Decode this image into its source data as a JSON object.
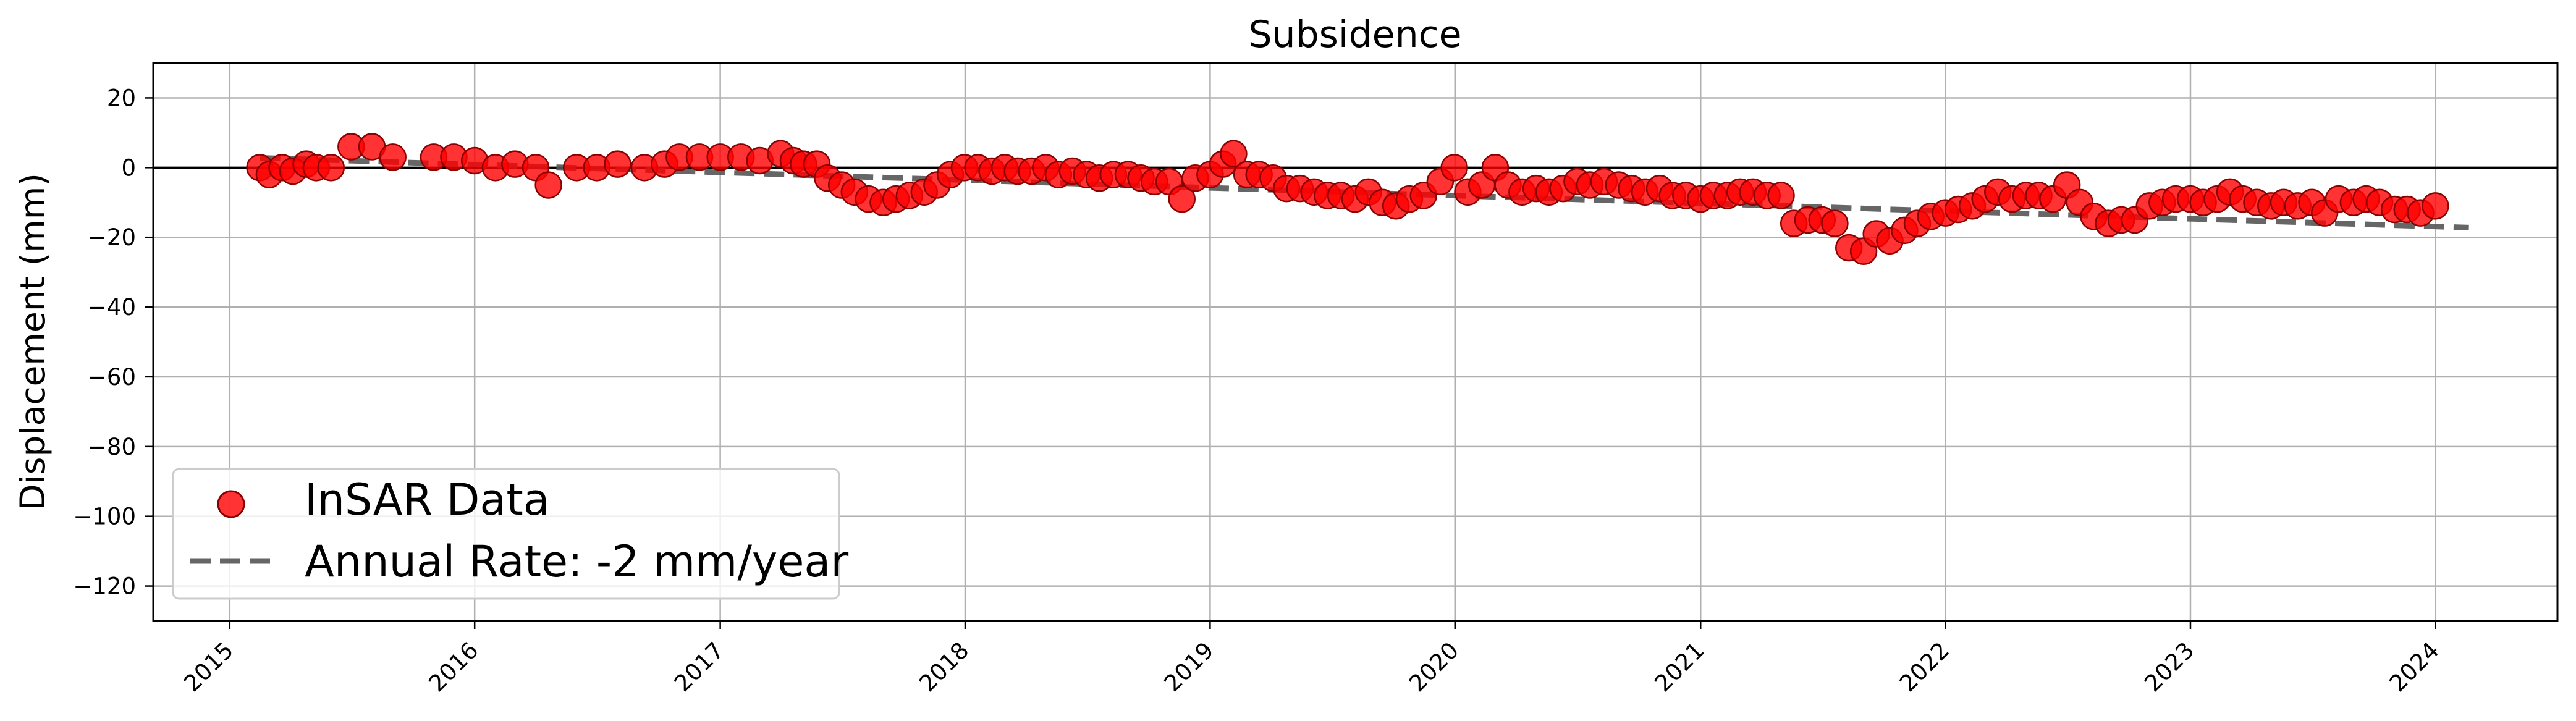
{
  "chart_data": {
    "type": "scatter",
    "title": "Subsidence",
    "xlabel": "",
    "ylabel": "Displacement (mm)",
    "xlim": [
      "2014-09-09",
      "2024-07-01"
    ],
    "ylim": [
      -130,
      30
    ],
    "x_ticks": [
      "2015",
      "2016",
      "2017",
      "2018",
      "2019",
      "2020",
      "2021",
      "2022",
      "2023",
      "2024"
    ],
    "y_ticks": [
      20,
      0,
      -20,
      -40,
      -60,
      -80,
      -100,
      -120
    ],
    "y_tick_labels": [
      "20",
      "0",
      "−20",
      "−40",
      "−60",
      "−80",
      "−100",
      "−120"
    ],
    "grid": true,
    "zero_line": true,
    "legend_position": "lower-left",
    "series": [
      {
        "name": "InSAR Data",
        "kind": "scatter",
        "color": "#ff0000",
        "points": [
          [
            "2015-02-15",
            0
          ],
          [
            "2015-03-01",
            -2
          ],
          [
            "2015-03-20",
            0
          ],
          [
            "2015-04-05",
            -1
          ],
          [
            "2015-04-25",
            1
          ],
          [
            "2015-05-10",
            0
          ],
          [
            "2015-06-01",
            0
          ],
          [
            "2015-07-01",
            6
          ],
          [
            "2015-08-01",
            6
          ],
          [
            "2015-09-01",
            3
          ],
          [
            "2015-11-01",
            3
          ],
          [
            "2015-12-01",
            3
          ],
          [
            "2016-01-01",
            2
          ],
          [
            "2016-02-01",
            0
          ],
          [
            "2016-03-01",
            1
          ],
          [
            "2016-04-01",
            0
          ],
          [
            "2016-04-20",
            -5
          ],
          [
            "2016-06-01",
            0
          ],
          [
            "2016-07-01",
            0
          ],
          [
            "2016-08-01",
            1
          ],
          [
            "2016-09-10",
            0
          ],
          [
            "2016-10-10",
            1
          ],
          [
            "2016-11-01",
            3
          ],
          [
            "2016-12-01",
            3
          ],
          [
            "2017-01-01",
            3
          ],
          [
            "2017-02-01",
            3
          ],
          [
            "2017-03-01",
            2
          ],
          [
            "2017-04-01",
            4
          ],
          [
            "2017-04-20",
            2
          ],
          [
            "2017-05-05",
            1
          ],
          [
            "2017-05-25",
            1
          ],
          [
            "2017-06-10",
            -3
          ],
          [
            "2017-07-01",
            -5
          ],
          [
            "2017-07-20",
            -7
          ],
          [
            "2017-08-10",
            -9
          ],
          [
            "2017-09-01",
            -10
          ],
          [
            "2017-09-20",
            -9
          ],
          [
            "2017-10-10",
            -8
          ],
          [
            "2017-11-01",
            -7
          ],
          [
            "2017-11-20",
            -5
          ],
          [
            "2017-12-10",
            -2
          ],
          [
            "2017-12-31",
            0
          ],
          [
            "2018-01-20",
            0
          ],
          [
            "2018-02-10",
            -1
          ],
          [
            "2018-03-01",
            0
          ],
          [
            "2018-03-20",
            -1
          ],
          [
            "2018-04-10",
            -1
          ],
          [
            "2018-05-01",
            0
          ],
          [
            "2018-05-20",
            -2
          ],
          [
            "2018-06-10",
            -1
          ],
          [
            "2018-07-01",
            -2
          ],
          [
            "2018-07-20",
            -3
          ],
          [
            "2018-08-10",
            -2
          ],
          [
            "2018-09-01",
            -2
          ],
          [
            "2018-09-20",
            -3
          ],
          [
            "2018-10-10",
            -4
          ],
          [
            "2018-11-01",
            -4
          ],
          [
            "2018-11-20",
            -9
          ],
          [
            "2018-12-10",
            -3
          ],
          [
            "2019-01-01",
            -2
          ],
          [
            "2019-01-20",
            1
          ],
          [
            "2019-02-05",
            4
          ],
          [
            "2019-02-25",
            -2
          ],
          [
            "2019-03-15",
            -2
          ],
          [
            "2019-04-05",
            -3
          ],
          [
            "2019-04-25",
            -6
          ],
          [
            "2019-05-15",
            -6
          ],
          [
            "2019-06-05",
            -7
          ],
          [
            "2019-06-25",
            -8
          ],
          [
            "2019-07-15",
            -8
          ],
          [
            "2019-08-05",
            -9
          ],
          [
            "2019-08-25",
            -7
          ],
          [
            "2019-09-15",
            -10
          ],
          [
            "2019-10-05",
            -11
          ],
          [
            "2019-10-25",
            -9
          ],
          [
            "2019-11-15",
            -8
          ],
          [
            "2019-12-10",
            -4
          ],
          [
            "2019-12-31",
            0
          ],
          [
            "2020-01-20",
            -7
          ],
          [
            "2020-02-10",
            -5
          ],
          [
            "2020-03-01",
            0
          ],
          [
            "2020-03-20",
            -5
          ],
          [
            "2020-04-10",
            -7
          ],
          [
            "2020-05-01",
            -6
          ],
          [
            "2020-05-20",
            -7
          ],
          [
            "2020-06-10",
            -6
          ],
          [
            "2020-07-01",
            -4
          ],
          [
            "2020-07-20",
            -5
          ],
          [
            "2020-08-10",
            -4
          ],
          [
            "2020-09-01",
            -5
          ],
          [
            "2020-09-20",
            -6
          ],
          [
            "2020-10-10",
            -7
          ],
          [
            "2020-11-01",
            -6
          ],
          [
            "2020-11-20",
            -8
          ],
          [
            "2020-12-10",
            -8
          ],
          [
            "2021-01-01",
            -9
          ],
          [
            "2021-01-20",
            -8
          ],
          [
            "2021-02-10",
            -8
          ],
          [
            "2021-03-01",
            -7
          ],
          [
            "2021-03-20",
            -7
          ],
          [
            "2021-04-10",
            -8
          ],
          [
            "2021-05-01",
            -8
          ],
          [
            "2021-05-20",
            -16
          ],
          [
            "2021-06-10",
            -15
          ],
          [
            "2021-07-01",
            -15
          ],
          [
            "2021-07-20",
            -16
          ],
          [
            "2021-08-10",
            -23
          ],
          [
            "2021-09-01",
            -24
          ],
          [
            "2021-09-20",
            -19
          ],
          [
            "2021-10-10",
            -21
          ],
          [
            "2021-11-01",
            -18
          ],
          [
            "2021-11-20",
            -16
          ],
          [
            "2021-12-10",
            -14
          ],
          [
            "2022-01-01",
            -13
          ],
          [
            "2022-01-20",
            -12
          ],
          [
            "2022-02-10",
            -11
          ],
          [
            "2022-03-01",
            -9
          ],
          [
            "2022-03-20",
            -7
          ],
          [
            "2022-04-10",
            -9
          ],
          [
            "2022-05-01",
            -8
          ],
          [
            "2022-05-20",
            -8
          ],
          [
            "2022-06-10",
            -9
          ],
          [
            "2022-07-01",
            -5
          ],
          [
            "2022-07-20",
            -10
          ],
          [
            "2022-08-10",
            -14
          ],
          [
            "2022-09-01",
            -16
          ],
          [
            "2022-09-20",
            -15
          ],
          [
            "2022-10-10",
            -15
          ],
          [
            "2022-11-01",
            -11
          ],
          [
            "2022-11-20",
            -10
          ],
          [
            "2022-12-10",
            -9
          ],
          [
            "2023-01-01",
            -9
          ],
          [
            "2023-01-20",
            -10
          ],
          [
            "2023-02-10",
            -9
          ],
          [
            "2023-03-01",
            -7
          ],
          [
            "2023-03-20",
            -9
          ],
          [
            "2023-04-10",
            -10
          ],
          [
            "2023-05-01",
            -11
          ],
          [
            "2023-05-20",
            -10
          ],
          [
            "2023-06-10",
            -11
          ],
          [
            "2023-07-01",
            -10
          ],
          [
            "2023-07-20",
            -13
          ],
          [
            "2023-08-10",
            -9
          ],
          [
            "2023-09-01",
            -10
          ],
          [
            "2023-09-20",
            -9
          ],
          [
            "2023-10-10",
            -10
          ],
          [
            "2023-11-01",
            -12
          ],
          [
            "2023-11-20",
            -12
          ],
          [
            "2023-12-10",
            -13
          ],
          [
            "2024-01-01",
            -11
          ]
        ]
      },
      {
        "name": "Annual Rate: -2 mm/year",
        "kind": "trend-line",
        "color": "#555555",
        "style": "dashed",
        "points": [
          [
            "2015-02-15",
            2.8
          ],
          [
            "2024-02-20",
            -17.2
          ]
        ]
      }
    ]
  }
}
